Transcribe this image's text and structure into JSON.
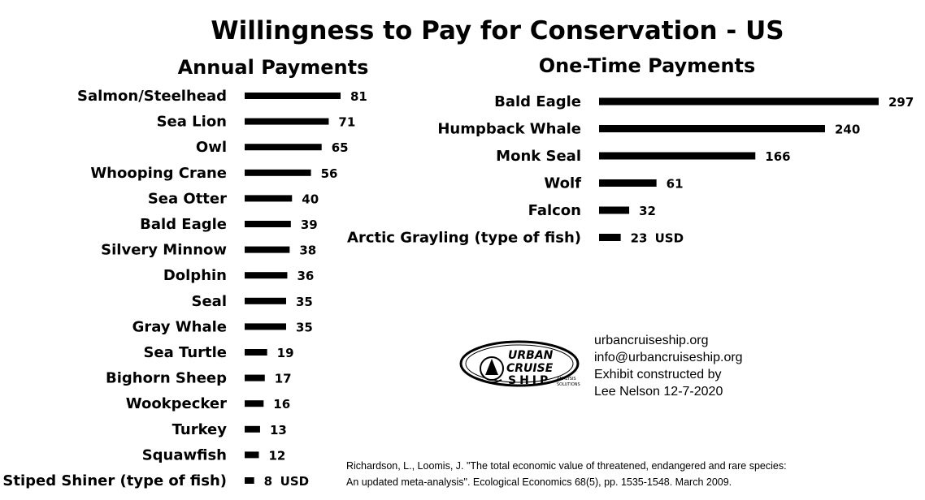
{
  "chart_data": {
    "title": "Willingness to Pay for Conservation - US",
    "unit": "USD",
    "panels": [
      {
        "type": "bar",
        "orientation": "horizontal",
        "subtitle": "Annual Payments",
        "categories": [
          "Salmon/Steelhead",
          "Sea Lion",
          "Owl",
          "Whooping Crane",
          "Sea Otter",
          "Bald Eagle",
          "Silvery Minnow",
          "Dolphin",
          "Seal",
          "Gray Whale",
          "Sea Turtle",
          "Bighorn Sheep",
          "Wookpecker",
          "Turkey",
          "Squawfish",
          "Stiped Shiner (type of fish)"
        ],
        "values": [
          81,
          71,
          65,
          56,
          40,
          39,
          38,
          36,
          35,
          35,
          19,
          17,
          16,
          13,
          12,
          8
        ],
        "bar_color": "#000000"
      },
      {
        "type": "bar",
        "orientation": "horizontal",
        "subtitle": "One-Time Payments",
        "categories": [
          "Bald Eagle",
          "Humpback Whale",
          "Monk Seal",
          "Wolf",
          "Falcon",
          "Arctic Grayling (type of fish)"
        ],
        "values": [
          297,
          240,
          166,
          61,
          32,
          23
        ],
        "bar_color": "#000000"
      }
    ]
  },
  "contact": {
    "website": "urbancruiseship.org",
    "email": "info@urbancruiseship.org",
    "line1": "Exhibit constructed by",
    "line2": "Lee Nelson 12-7-2020"
  },
  "logo": {
    "text_urban": "URBAN",
    "text_cruise": "CRUISE",
    "text_ship": "SHIP",
    "text_analysis": "ANALYSIS",
    "text_solutions": "SOLUTIONS"
  },
  "citation": {
    "line1": "Richardson, L., Loomis, J. \"The total economic value of threatened, endangered and rare species:",
    "line2": "An updated meta-analysis\". Ecological Economics 68(5), pp. 1535-1548. March 2009."
  }
}
